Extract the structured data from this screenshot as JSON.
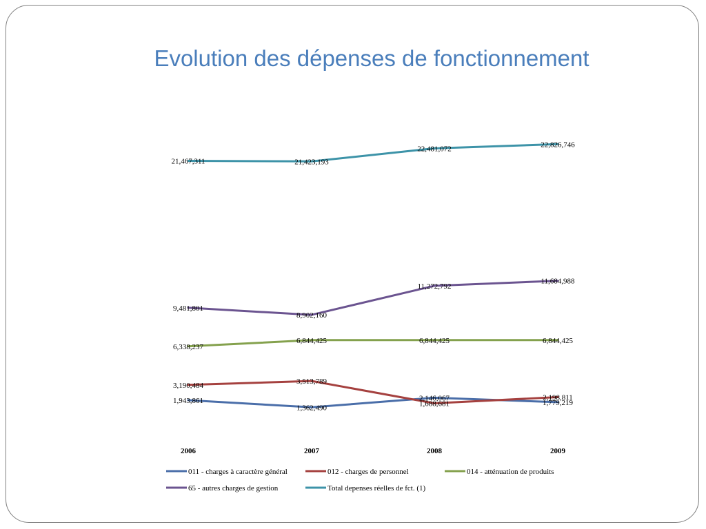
{
  "title": "Evolution des dépenses de fonctionnement",
  "chart_data": {
    "type": "line",
    "categories": [
      "2006",
      "2007",
      "2008",
      "2009"
    ],
    "series": [
      {
        "name": "011 - charges à caractère général",
        "color": "#4a6ea9",
        "values": [
          1943861,
          1362490,
          2146067,
          1779219
        ],
        "labels": [
          "1,943,861",
          "1,362,490",
          "2,146,067",
          "1,779,219"
        ]
      },
      {
        "name": "012 - charges de personnel",
        "color": "#a5413f",
        "values": [
          3190484,
          3513789,
          1688681,
          2198811
        ],
        "labels": [
          "3,190,484",
          "3,513,789",
          "1,688,681",
          "2,198,811"
        ]
      },
      {
        "name": "014 - atténuation de produits",
        "color": "#84a14d",
        "values": [
          6338237,
          6844425,
          6844425,
          6844425
        ],
        "labels": [
          "6,338,237",
          "6,844,425",
          "6,844,425",
          "6,844,425"
        ]
      },
      {
        "name": "65 - autres charges de gestion",
        "color": "#6b5490",
        "values": [
          9481801,
          8902160,
          11272792,
          11684988
        ],
        "labels": [
          "9,481,801",
          "8,902,160",
          "11,272,792",
          "11,684,988"
        ]
      },
      {
        "name": "Total depenses réelles de fct. (1)",
        "color": "#3d93a8",
        "values": [
          21467311,
          21423193,
          22481072,
          22826746
        ],
        "labels": [
          "21,467,311",
          "21,423,193",
          "22,481,072",
          "22,826,746"
        ]
      }
    ],
    "legend_position": "bottom",
    "grid": false
  }
}
